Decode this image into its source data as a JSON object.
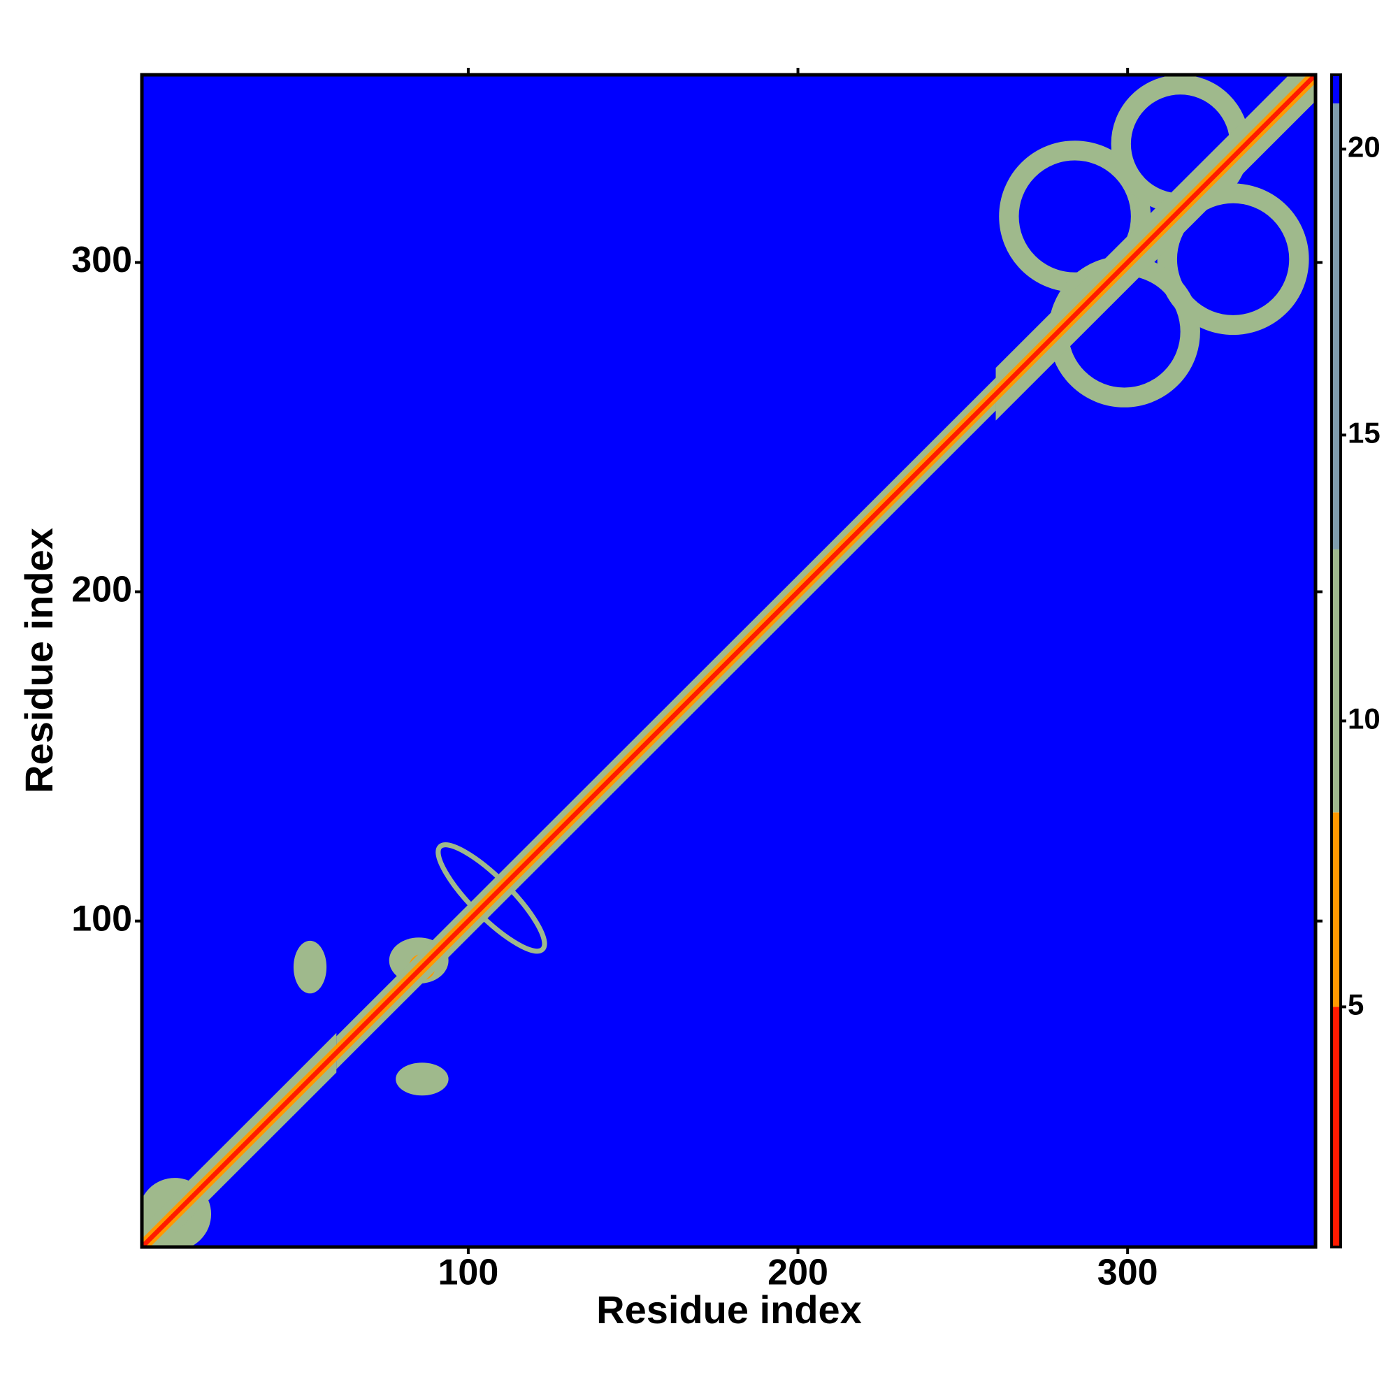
{
  "chart_data": {
    "type": "heatmap",
    "x_label": "Residue index",
    "y_label": "Residue index",
    "xlim": [
      1,
      357
    ],
    "ylim": [
      1,
      357
    ],
    "xticks": [
      100,
      200,
      300
    ],
    "yticks": [
      100,
      200,
      300
    ],
    "colorbar": {
      "lim": [
        0.8,
        21.3
      ],
      "ticks": [
        5,
        10,
        15,
        20
      ],
      "segments": [
        {
          "from": 0.8,
          "to": 5,
          "color": "#ff1a00"
        },
        {
          "from": 5,
          "to": 8.4,
          "color": "#ff9900"
        },
        {
          "from": 8.4,
          "to": 13,
          "color": "#9fb98c"
        },
        {
          "from": 13,
          "to": 20.8,
          "color": "#7f9cad"
        },
        {
          "from": 20.8,
          "to": 21.3,
          "color": "#0000ff"
        }
      ]
    },
    "background_value": 21,
    "features": [
      {
        "shape": "ellipse",
        "cx": 11,
        "cy": 11,
        "rx": 11,
        "ry": 11,
        "value": 12
      },
      {
        "shape": "ellipse",
        "cx": 52,
        "cy": 86,
        "rx": 5,
        "ry": 8,
        "value": 12
      },
      {
        "shape": "ellipse",
        "cx": 86,
        "cy": 52,
        "rx": 8,
        "ry": 5,
        "value": 12
      },
      {
        "shape": "ellipse",
        "cx": 85,
        "cy": 88,
        "rx": 9,
        "ry": 7,
        "value": 12
      },
      {
        "shape": "ellipse",
        "cx": 86,
        "cy": 86,
        "rx": 4,
        "ry": 4,
        "value": 7
      },
      {
        "shape": "ring",
        "cx": 107,
        "cy": 107,
        "rx": 22,
        "ry": 6,
        "width": 1.5,
        "orientation": "anti-diagonal",
        "value": 12
      },
      {
        "shape": "ring",
        "cx": 284,
        "cy": 314,
        "rx": 20,
        "ry": 20,
        "width": 6,
        "value": 12
      },
      {
        "shape": "ring",
        "cx": 316,
        "cy": 336,
        "rx": 18,
        "ry": 18,
        "width": 6,
        "value": 12
      },
      {
        "shape": "ring",
        "cx": 332,
        "cy": 301,
        "rx": 20,
        "ry": 20,
        "width": 6,
        "value": 12
      },
      {
        "shape": "ring",
        "cx": 299,
        "cy": 279,
        "rx": 20,
        "ry": 20,
        "width": 6,
        "value": 12
      }
    ],
    "diagonal_bands": [
      {
        "start": 1,
        "end": 60,
        "halfwidth": 6,
        "value": 12
      },
      {
        "start": 60,
        "end": 260,
        "halfwidth": 5,
        "value": 12
      },
      {
        "start": 260,
        "end": 357,
        "halfwidth": 8,
        "value": 12
      },
      {
        "start": 1,
        "end": 357,
        "halfwidth": 2.5,
        "value": 6.5
      },
      {
        "start": 1,
        "end": 357,
        "halfwidth": 1,
        "value": 2
      }
    ]
  }
}
